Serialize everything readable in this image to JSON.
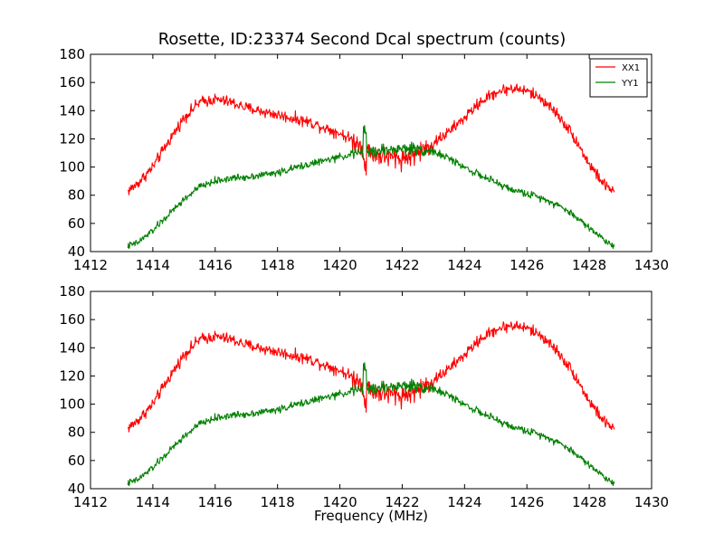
{
  "figure": {
    "title": "Rosette, ID:23374 Second Dcal spectrum (counts)",
    "xlabel": "Frequency (MHz)"
  },
  "chart_data": [
    {
      "type": "line",
      "panel": "top",
      "xlim": [
        1412,
        1430
      ],
      "ylim": [
        40,
        180
      ],
      "x_ticks": [
        "1412",
        "1414",
        "1416",
        "1418",
        "1420",
        "1422",
        "1424",
        "1426",
        "1428",
        "1430"
      ],
      "y_ticks": [
        "40",
        "60",
        "80",
        "100",
        "120",
        "140",
        "160",
        "180"
      ],
      "legend": "top-right",
      "grid": false,
      "series": [
        {
          "name": "XX1",
          "color": "#ff0000",
          "noise": 4,
          "x": [
            1413.2,
            1413.5,
            1414.0,
            1414.5,
            1415.0,
            1415.5,
            1416.0,
            1416.5,
            1417.0,
            1418.0,
            1419.0,
            1420.0,
            1420.5,
            1421.0,
            1421.5,
            1422.0,
            1422.5,
            1423.0,
            1423.5,
            1424.0,
            1424.5,
            1425.0,
            1425.5,
            1426.0,
            1426.5,
            1427.0,
            1427.5,
            1428.0,
            1428.5,
            1428.8
          ],
          "y": [
            83,
            88,
            100,
            118,
            135,
            146,
            148,
            146,
            142,
            137,
            132,
            124,
            118,
            110,
            107,
            106,
            110,
            117,
            125,
            135,
            146,
            153,
            156,
            154,
            148,
            137,
            122,
            102,
            87,
            83
          ]
        },
        {
          "name": "YY1",
          "color": "#008000",
          "noise": 2.5,
          "x": [
            1413.2,
            1413.5,
            1414.0,
            1414.5,
            1415.0,
            1415.5,
            1416.0,
            1416.5,
            1417.0,
            1418.0,
            1419.0,
            1420.0,
            1420.5,
            1421.0,
            1421.5,
            1422.0,
            1422.5,
            1423.0,
            1423.5,
            1424.0,
            1424.5,
            1425.0,
            1425.5,
            1426.0,
            1426.5,
            1427.0,
            1427.5,
            1428.0,
            1428.5,
            1428.8
          ],
          "y": [
            44,
            46,
            55,
            66,
            77,
            86,
            90,
            92,
            93,
            96,
            102,
            107,
            110,
            111,
            112,
            113,
            113,
            111,
            106,
            100,
            94,
            89,
            84,
            81,
            78,
            73,
            66,
            57,
            48,
            44
          ]
        }
      ]
    },
    {
      "type": "line",
      "panel": "bottom",
      "xlim": [
        1412,
        1430
      ],
      "ylim": [
        40,
        180
      ],
      "x_ticks": [
        "1412",
        "1414",
        "1416",
        "1418",
        "1420",
        "1422",
        "1424",
        "1426",
        "1428",
        "1430"
      ],
      "y_ticks": [
        "40",
        "60",
        "80",
        "100",
        "120",
        "140",
        "160",
        "180"
      ],
      "xlabel": "Frequency (MHz)",
      "grid": false,
      "series": [
        {
          "color": "#ff0000",
          "noise": 4,
          "x": [
            1413.2,
            1413.5,
            1414.0,
            1414.5,
            1415.0,
            1415.5,
            1416.0,
            1416.5,
            1417.0,
            1418.0,
            1419.0,
            1420.0,
            1420.5,
            1421.0,
            1421.5,
            1422.0,
            1422.5,
            1423.0,
            1423.5,
            1424.0,
            1424.5,
            1425.0,
            1425.5,
            1426.0,
            1426.5,
            1427.0,
            1427.5,
            1428.0,
            1428.5,
            1428.8
          ],
          "y": [
            83,
            88,
            100,
            118,
            135,
            146,
            148,
            146,
            142,
            137,
            132,
            124,
            118,
            110,
            107,
            106,
            110,
            117,
            125,
            135,
            146,
            153,
            156,
            154,
            148,
            137,
            122,
            102,
            87,
            83
          ]
        },
        {
          "color": "#008000",
          "noise": 2.5,
          "x": [
            1413.2,
            1413.5,
            1414.0,
            1414.5,
            1415.0,
            1415.5,
            1416.0,
            1416.5,
            1417.0,
            1418.0,
            1419.0,
            1420.0,
            1420.5,
            1421.0,
            1421.5,
            1422.0,
            1422.5,
            1423.0,
            1423.5,
            1424.0,
            1424.5,
            1425.0,
            1425.5,
            1426.0,
            1426.5,
            1427.0,
            1427.5,
            1428.0,
            1428.5,
            1428.8
          ],
          "y": [
            44,
            46,
            55,
            66,
            77,
            86,
            90,
            92,
            93,
            96,
            102,
            107,
            110,
            111,
            112,
            113,
            113,
            111,
            106,
            100,
            94,
            89,
            84,
            81,
            78,
            73,
            66,
            57,
            48,
            44
          ]
        }
      ]
    }
  ]
}
